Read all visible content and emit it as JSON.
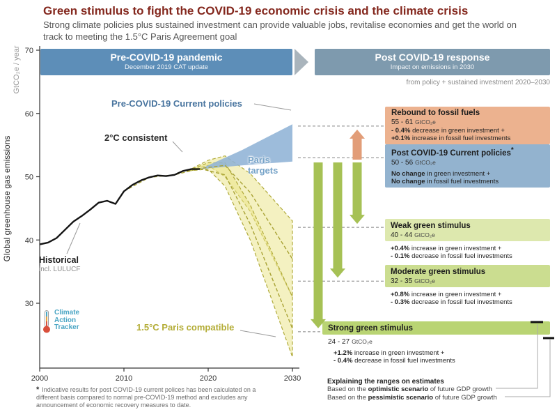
{
  "palette": {
    "title": "#84281e",
    "banner_pre": "#5d8eb8",
    "banner_post": "#7e9aae",
    "chevron": "#a9b4bc",
    "historical": "#141414",
    "current_policies_band": "#8fb3d6",
    "paris_band": "#e9e483",
    "band_stroke": "#a8a234",
    "green_arrow": "#a6c155",
    "orange_arrow": "#e29d78"
  },
  "header": {
    "title": "Green stimulus to fight the COVID-19 economic crisis and the climate crisis",
    "subtitle": "Strong climate policies plus sustained investment can provide valuable jobs, revitalise economies and get the world on track to meeting the 1.5°C Paris Agreement goal"
  },
  "banners": {
    "pre": {
      "title": "Pre-COVID-19 pandemic",
      "subtitle": "December 2019 CAT update"
    },
    "post": {
      "title": "Post COVID-19 response",
      "subtitle": "Impact on emissions in 2030"
    },
    "post_note": "from policy + sustained investment 2020–2030"
  },
  "labels": {
    "current_policies": "Pre-COVID-19 Current policies",
    "two_deg": "2°C consistent",
    "paris_line1": "Paris",
    "paris_line2": "targets",
    "paris15": "1.5°C Paris compatible",
    "historical": "Historical",
    "historical_sub": "incl. LULUCF"
  },
  "logo": {
    "line1": "Climate",
    "line2": "Action",
    "line3": "Tracker"
  },
  "boxes": [
    {
      "id": "rebound-to-fossil-fuels",
      "title": "Rebound to fossil fuels",
      "range": "55 - 61",
      "unit": "GtCO₂e",
      "color": "#ecb28f",
      "line1_bold": "- 0.4%",
      "line1_rest": " decrease in green investment +",
      "line2_bold": "+0.1%",
      "line2_rest": " increase in fossil fuel investments"
    },
    {
      "id": "post-covid-current-policies",
      "title": "Post COVID-19 Current policies",
      "mark": "*",
      "range": "50 - 56",
      "unit": "GtCO₂e",
      "color": "#93b3cf",
      "line1_bold": "No change",
      "line1_rest": " in green investment +",
      "line2_bold": "No change",
      "line2_rest": " in fossil fuel investments"
    },
    {
      "id": "weak-green-stimulus",
      "title": "Weak green stimulus",
      "range": "40 - 44",
      "unit": "GtCO₂e",
      "color": "#dde8ae",
      "line1_bold": "+0.4%",
      "line1_rest": " increase in green investment +",
      "line2_bold": "- 0.1%",
      "line2_rest": " decrease in fossil fuel investments"
    },
    {
      "id": "moderate-green-stimulus",
      "title": "Moderate green stimulus",
      "range": "32 - 35",
      "unit": "GtCO₂e",
      "color": "#cbdd90",
      "line1_bold": "+0.8%",
      "line1_rest": " increase in green investment +",
      "line2_bold": "- 0.3%",
      "line2_rest": " decrease in fossil fuel investments"
    },
    {
      "id": "strong-green-stimulus",
      "title": "Strong green stimulus",
      "range": "24 - 27",
      "unit": "GtCO₂e",
      "color": "#b9d473",
      "line1_bold": "+1.2%",
      "line1_rest": " increase in green investment +",
      "line2_bold": "- 0.4%",
      "line2_rest": " decrease in fossil fuel investments"
    }
  ],
  "footnote": {
    "mark": "*",
    "text": "Indicative results for post COVID-19 current polices has been calculated on a different basis compared to normal pre-COVID-19 method and excludes any announcement of economic recovery measures to date."
  },
  "ranges_note": {
    "title": "Explaining the ranges on estimates",
    "line1_pre": "Based on the ",
    "line1_bold": "optimistic scenario",
    "line1_post": " of future GDP growth",
    "line2_pre": "Based on the ",
    "line2_bold": "pessimistic scenario",
    "line2_post": " of future GDP growth"
  },
  "chart_data": {
    "type": "line",
    "title": "Global greenhouse gas emissions scenarios 2000–2030",
    "ylabel": "Global greenhouse gas emissions",
    "yunit": "GtCO₂e / year",
    "x_range": [
      2000,
      2030
    ],
    "y_range": [
      20,
      70
    ],
    "x_ticks": [
      2000,
      2010,
      2020,
      2030
    ],
    "y_ticks": [
      30,
      40,
      50,
      60,
      70
    ],
    "grid": false,
    "historical": {
      "name": "Historical incl. LULUCF",
      "x": [
        2000,
        2001,
        2002,
        2003,
        2004,
        2005,
        2006,
        2007,
        2008,
        2009,
        2010,
        2011,
        2012,
        2013,
        2014,
        2015,
        2016,
        2017,
        2018,
        2019
      ],
      "y": [
        39.3,
        39.6,
        40.3,
        41.6,
        42.9,
        43.8,
        44.8,
        45.9,
        46.2,
        45.7,
        47.7,
        48.7,
        49.4,
        49.9,
        50.2,
        50.1,
        50.3,
        50.9,
        51.2,
        51.2
      ]
    },
    "bands": [
      {
        "name": "two-deg-band",
        "fill": "#e9e483",
        "opacity": 0.5,
        "stroke": "#b0aa3a",
        "top": [
          [
            2017.5,
            50.9
          ],
          [
            2020,
            52.6
          ],
          [
            2022,
            53.3
          ],
          [
            2025,
            50.5
          ],
          [
            2030,
            43
          ]
        ],
        "bottom": [
          [
            2030,
            31
          ],
          [
            2025,
            44.5
          ],
          [
            2022,
            50
          ],
          [
            2020,
            51.8
          ],
          [
            2017.5,
            50.9
          ]
        ]
      },
      {
        "name": "paris-15-band",
        "fill": "#e9e483",
        "opacity": 0.5,
        "stroke": "#b0aa3a",
        "top": [
          [
            2017.5,
            50.9
          ],
          [
            2020,
            52.2
          ],
          [
            2022,
            52.2
          ],
          [
            2025,
            45.5
          ],
          [
            2030,
            31
          ]
        ],
        "bottom": [
          [
            2030,
            21.5
          ],
          [
            2025,
            40
          ],
          [
            2022,
            48.5
          ],
          [
            2020,
            51.2
          ],
          [
            2017.5,
            50.9
          ]
        ]
      },
      {
        "name": "pre-covid-current-policies-band",
        "fill": "#8fb3d6",
        "opacity": 0.88,
        "top": [
          [
            2019,
            51.2
          ],
          [
            2024,
            54.2
          ],
          [
            2030,
            58.3
          ]
        ],
        "bottom": [
          [
            2030,
            52.4
          ],
          [
            2024,
            51.8
          ],
          [
            2019,
            51.2
          ]
        ]
      }
    ],
    "dashed_lines": [
      {
        "name": "two-deg-median",
        "points": [
          [
            2010,
            47.7
          ],
          [
            2013,
            49.9
          ],
          [
            2016,
            50.3
          ],
          [
            2019,
            51.3
          ],
          [
            2022,
            51.8
          ],
          [
            2025,
            47.5
          ],
          [
            2030,
            37
          ]
        ]
      },
      {
        "name": "paris-15-median",
        "points": [
          [
            2019,
            51.3
          ],
          [
            2022,
            50.3
          ],
          [
            2025,
            42.5
          ],
          [
            2030,
            26
          ]
        ]
      }
    ],
    "scenarios_2030": [
      {
        "name": "Pre-COVID-19 Current policies",
        "range": [
          52,
          58
        ]
      },
      {
        "name": "2°C consistent",
        "range": [
          31,
          43
        ]
      },
      {
        "name": "1.5°C Paris compatible",
        "range": [
          21.5,
          31
        ]
      }
    ],
    "outcomes_2030": [
      {
        "id": "rebound-to-fossil-fuels",
        "name": "Rebound to fossil fuels",
        "range": [
          55,
          61
        ],
        "level": 58
      },
      {
        "id": "post-covid-current-policies",
        "name": "Post COVID-19 Current policies",
        "range": [
          50,
          56
        ],
        "level": 53
      },
      {
        "id": "weak-green-stimulus",
        "name": "Weak green stimulus",
        "range": [
          40,
          44
        ],
        "level": 42
      },
      {
        "id": "moderate-green-stimulus",
        "name": "Moderate green stimulus",
        "range": [
          32,
          35
        ],
        "level": 33.5
      },
      {
        "id": "strong-green-stimulus",
        "name": "Strong green stimulus",
        "range": [
          24,
          27
        ],
        "level": 25.5
      }
    ]
  }
}
